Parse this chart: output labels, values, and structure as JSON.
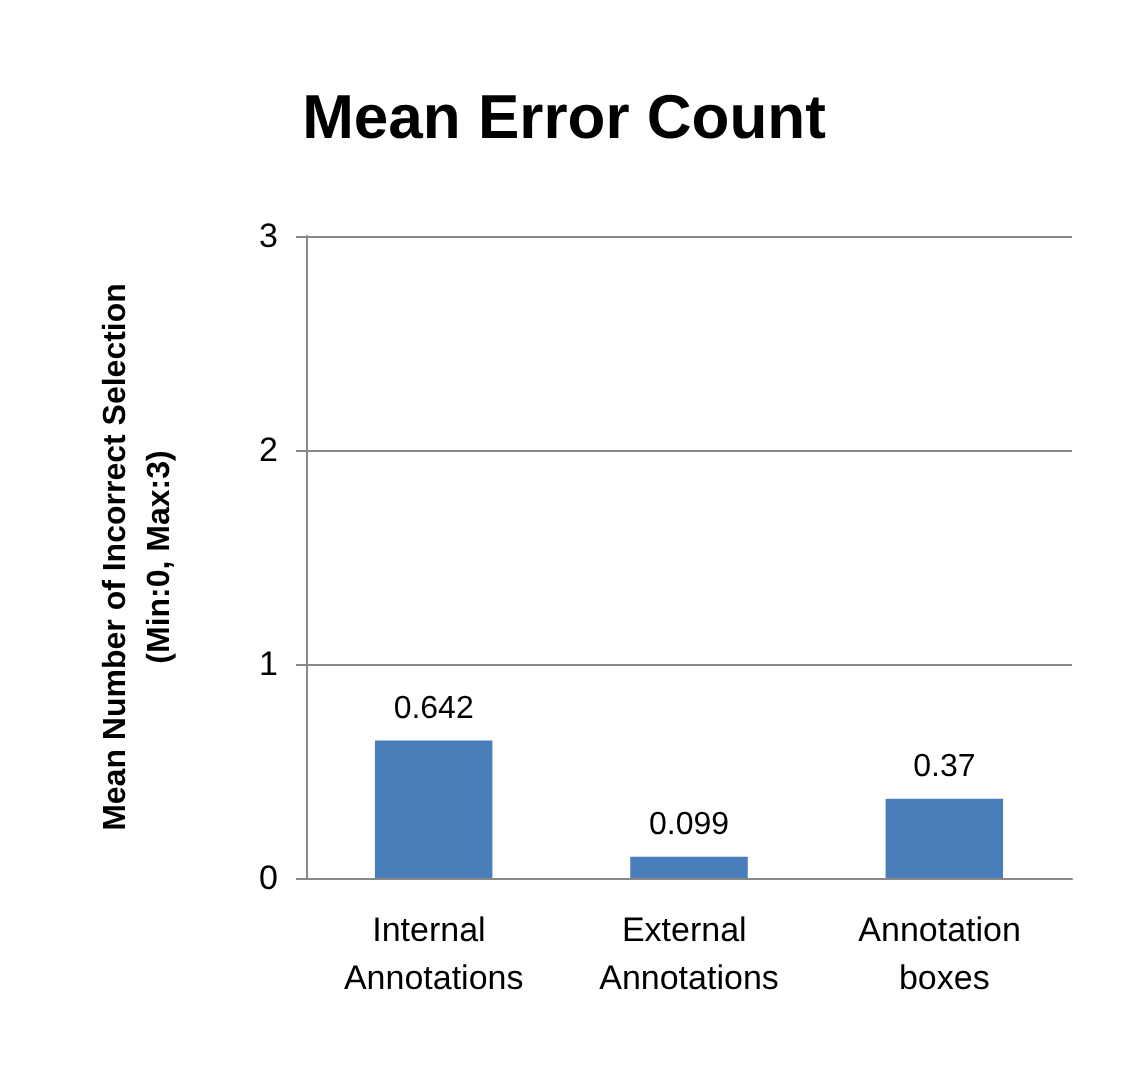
{
  "chart_data": {
    "type": "bar",
    "title": "Mean Error Count",
    "ylabel": "Mean Number of Incorrect Selection\n(Min:0, Max:3)",
    "categories": [
      "Internal Annotations",
      "External Annotations",
      "Annotation boxes"
    ],
    "values": [
      0.642,
      0.099,
      0.37
    ],
    "color": "#4a7ebb",
    "ylim": [
      0,
      3
    ],
    "yticks": [
      0,
      1,
      2,
      3
    ],
    "grid": "y",
    "data_labels": true
  }
}
